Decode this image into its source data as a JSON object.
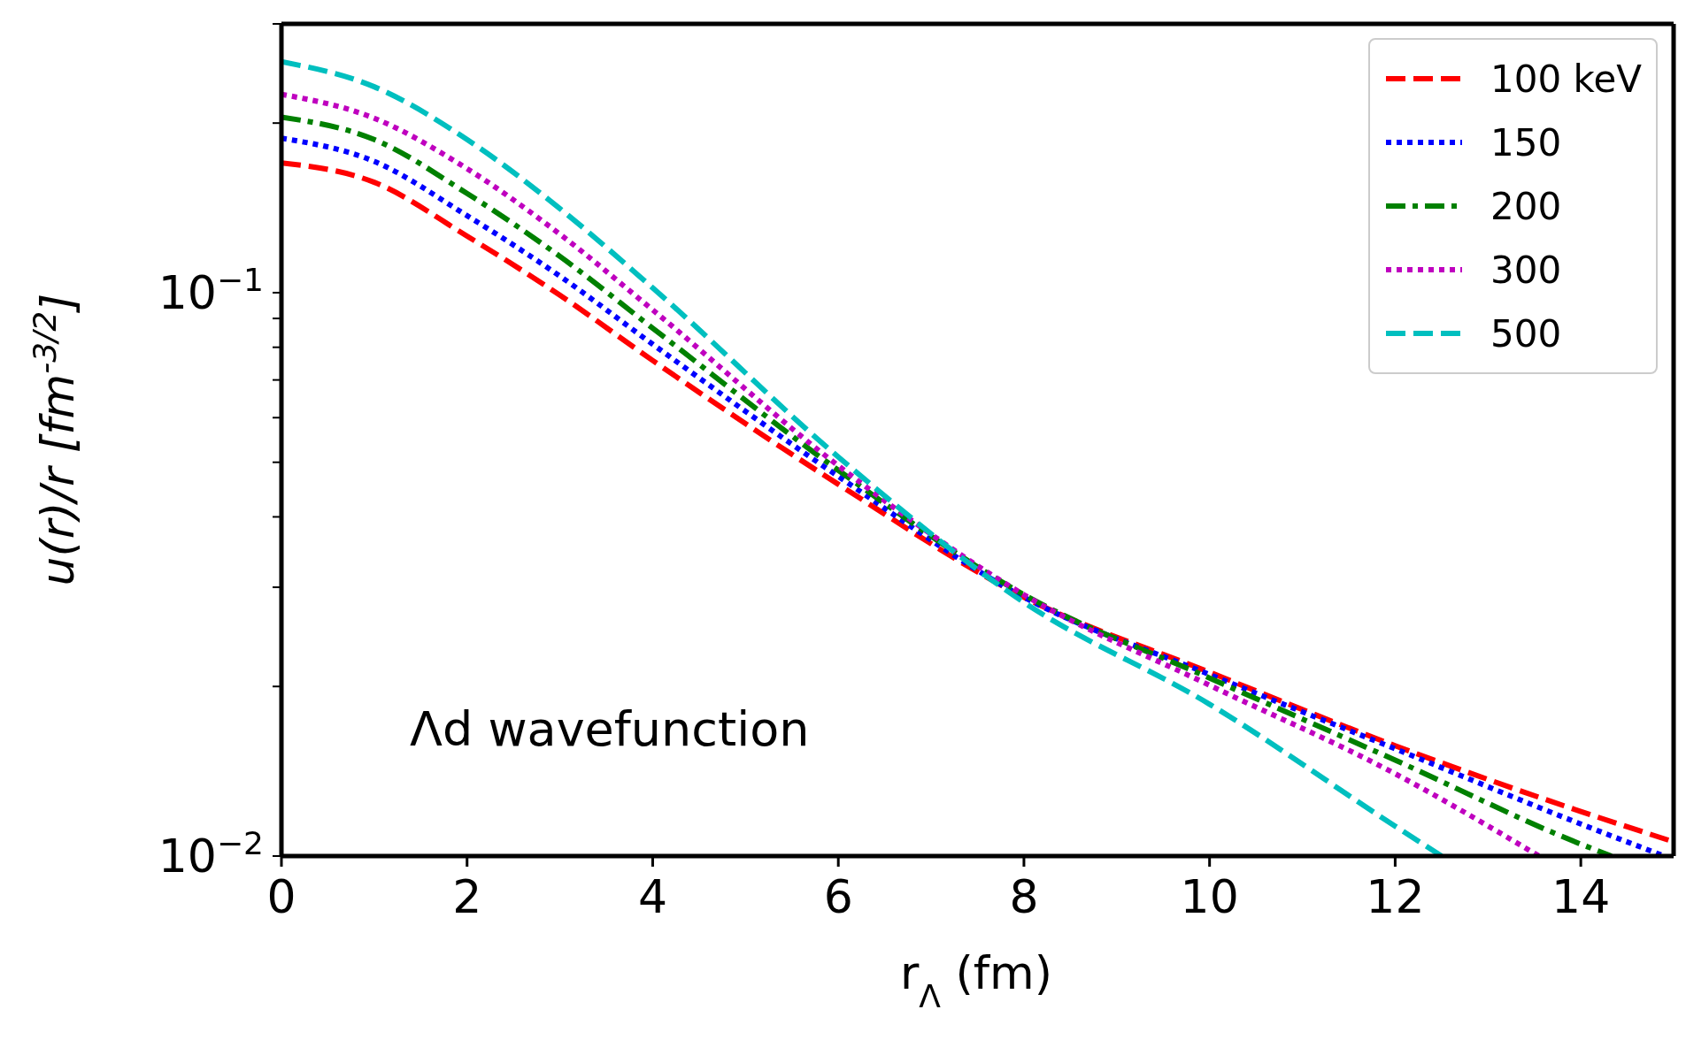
{
  "chart_data": {
    "type": "line",
    "xlabel": "r$_{Λ}$  (fm)",
    "ylabel": "u(r)/r  [fm$^{-3/2}$]",
    "annotations": [
      "Λd wavefunction"
    ],
    "xlim": [
      0,
      15
    ],
    "xticks": [
      0,
      2,
      4,
      6,
      8,
      10,
      12,
      14
    ],
    "ylim": [
      0.01,
      0.3
    ],
    "log": "y",
    "yticks": [
      {
        "value": 0.01,
        "label": "10$^{−2}$"
      },
      {
        "value": 0.02,
        "label": null
      },
      {
        "value": 0.03,
        "label": null
      },
      {
        "value": 0.04,
        "label": null
      },
      {
        "value": 0.05,
        "label": null
      },
      {
        "value": 0.06,
        "label": null
      },
      {
        "value": 0.07,
        "label": null
      },
      {
        "value": 0.08,
        "label": null
      },
      {
        "value": 0.09,
        "label": null
      },
      {
        "value": 0.1,
        "label": "10$^{−1}$"
      },
      {
        "value": 0.2,
        "label": null
      },
      {
        "value": 0.3,
        "label": null
      }
    ],
    "legend": "top right",
    "marker": "none",
    "series": [
      {
        "name": "100 keV",
        "color": "#ff0000",
        "line_style": "dashed",
        "x": [
          0,
          1,
          2,
          3,
          4,
          6,
          8,
          10,
          12,
          14,
          15
        ],
        "values": [
          0.17,
          0.157,
          0.126,
          0.099,
          0.0758,
          0.0457,
          0.0288,
          0.0212,
          0.0157,
          0.012,
          0.0106
        ]
      },
      {
        "name": "150",
        "color": "#0000ff",
        "line_style": "dotted",
        "x": [
          0,
          1,
          2,
          3,
          4,
          6,
          8,
          10,
          12,
          14,
          14.9
        ],
        "values": [
          0.188,
          0.171,
          0.137,
          0.107,
          0.081,
          0.0472,
          0.0288,
          0.021,
          0.0155,
          0.0114,
          0.01
        ]
      },
      {
        "name": "200",
        "color": "#008000",
        "line_style": "dashdot",
        "x": [
          0,
          1,
          2,
          3,
          4,
          6,
          8,
          10,
          12,
          14,
          14.33
        ],
        "values": [
          0.205,
          0.187,
          0.15,
          0.116,
          0.0865,
          0.0484,
          0.0291,
          0.0207,
          0.0148,
          0.0105,
          0.01
        ]
      },
      {
        "name": "300",
        "color": "#bf00bf",
        "line_style": "dotted",
        "x": [
          0,
          1,
          2,
          3,
          4,
          6,
          8,
          10,
          12,
          13.55
        ],
        "values": [
          0.225,
          0.204,
          0.166,
          0.127,
          0.0932,
          0.0493,
          0.0291,
          0.0201,
          0.014,
          0.01
        ]
      },
      {
        "name": "500",
        "color": "#00bfbf",
        "line_style": "dashed",
        "x": [
          0,
          1,
          2,
          3,
          4,
          6,
          8,
          10,
          12,
          12.5
        ],
        "values": [
          0.257,
          0.232,
          0.187,
          0.141,
          0.102,
          0.0511,
          0.0282,
          0.0186,
          0.0113,
          0.01
        ]
      }
    ]
  }
}
